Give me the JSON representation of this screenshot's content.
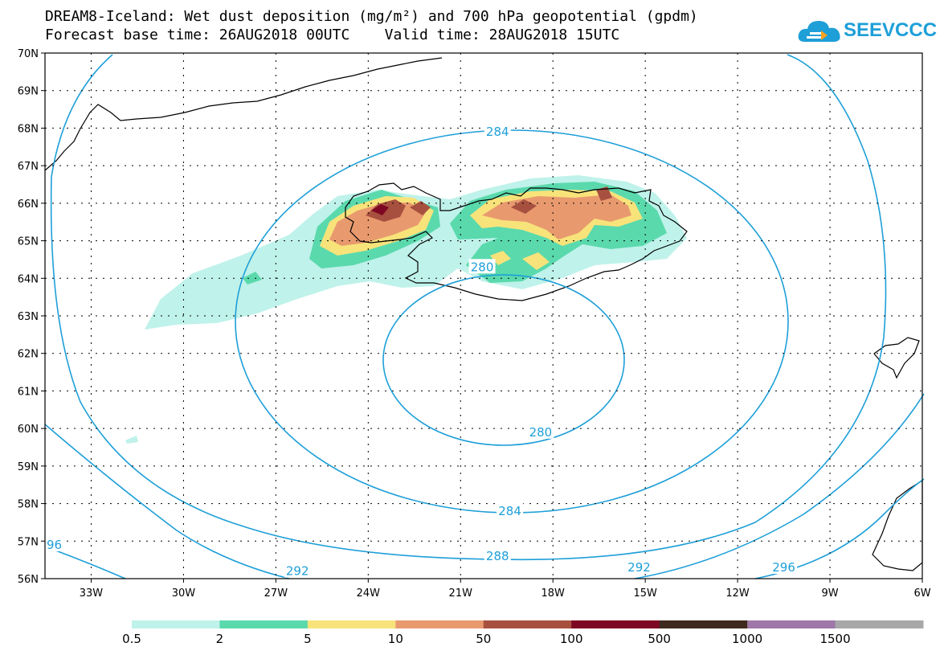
{
  "title": {
    "line1": "DREAM8-Iceland: Wet dust deposition (mg/m²) and 700 hPa geopotential (gpdm)",
    "line2": "Forecast base time: 26AUG2018 00UTC    Valid time: 28AUG2018 15UTC"
  },
  "logo": {
    "text": "SEEVCCC",
    "icon": "cloud-icon"
  },
  "map_data": {
    "lon_range": [
      -34.5,
      -6
    ],
    "lat_range": [
      56,
      70
    ],
    "lon_ticks": [
      -33,
      -30,
      -27,
      -24,
      -21,
      -18,
      -15,
      -12,
      -9,
      -6
    ],
    "lon_tick_labels": [
      "33W",
      "30W",
      "27W",
      "24W",
      "21W",
      "18W",
      "15W",
      "12W",
      "9W",
      "6W"
    ],
    "lat_ticks": [
      56,
      57,
      58,
      59,
      60,
      61,
      62,
      63,
      64,
      65,
      66,
      67,
      68,
      69,
      70
    ],
    "lat_tick_labels": [
      "56N",
      "57N",
      "58N",
      "59N",
      "60N",
      "61N",
      "62N",
      "63N",
      "64N",
      "65N",
      "66N",
      "67N",
      "68N",
      "69N",
      "70N"
    ],
    "contour_labels": [
      {
        "text": "284",
        "lon": -19.8,
        "lat": 67.9
      },
      {
        "text": "280",
        "lon": -20.3,
        "lat": 64.3
      },
      {
        "text": "280",
        "lon": -18.4,
        "lat": 59.9
      },
      {
        "text": "284",
        "lon": -19.4,
        "lat": 57.8
      },
      {
        "text": "288",
        "lon": -19.8,
        "lat": 56.6
      },
      {
        "text": "292",
        "lon": -26.3,
        "lat": 56.2
      },
      {
        "text": "292",
        "lon": -15.2,
        "lat": 56.3
      },
      {
        "text": "296",
        "lon": -10.5,
        "lat": 56.3
      },
      {
        "text": "96",
        "lon": -34.2,
        "lat": 56.9
      }
    ],
    "contour_color": "#1e9fd8",
    "grid": true
  },
  "colorbar": {
    "labels": [
      "0.5",
      "2",
      "5",
      "10",
      "50",
      "100",
      "500",
      "1000",
      "1500"
    ],
    "colors": [
      "#bff2ea",
      "#5ad9ad",
      "#f8e37a",
      "#e89a6e",
      "#a85040",
      "#7e0823",
      "#3e2a1e",
      "#9d78a8",
      "#a8a8a8"
    ]
  }
}
